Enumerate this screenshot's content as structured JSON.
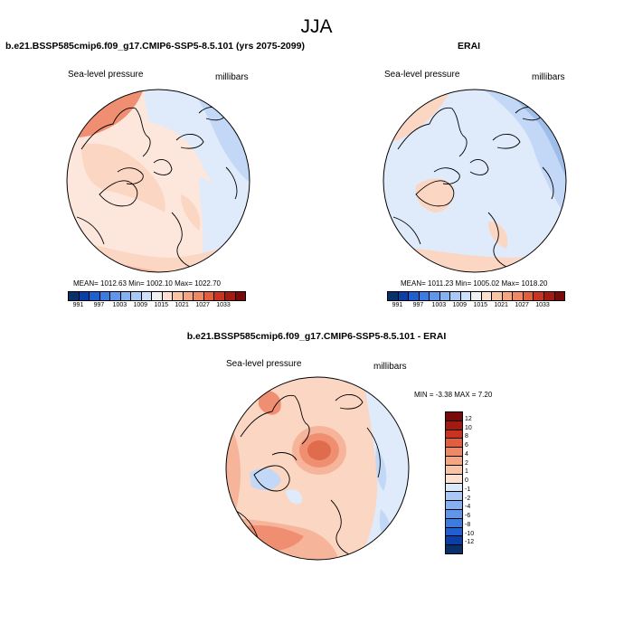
{
  "figure": {
    "title": "JJA"
  },
  "panels": [
    {
      "title": "b.e21.BSSP585cmip6.f09_g17.CMIP6-SSP5-8.5.101 (yrs 2075-2099)",
      "variable": "Sea-level pressure",
      "units": "millibars",
      "stats": "MEAN= 1012.63   Min= 1002.10   Max= 1022.70"
    },
    {
      "title": "ERAI",
      "variable": "Sea-level pressure",
      "units": "millibars",
      "stats": "MEAN= 1011.23   Min= 1005.02   Max= 1018.20"
    },
    {
      "title": "b.e21.BSSP585cmip6.f09_g17.CMIP6-SSP5-8.5.101 - ERAI",
      "variable": "Sea-level pressure",
      "units": "millibars",
      "stats": "MIN =  -3.38 MAX =   7.20"
    }
  ],
  "abs_colorbar": {
    "tick_labels": [
      "991",
      "997",
      "1003",
      "1009",
      "1015",
      "1021",
      "1027",
      "1033"
    ],
    "colors": [
      "#08306b",
      "#0b3fa8",
      "#1f5fd0",
      "#3c7be0",
      "#5f95ea",
      "#86b1f0",
      "#aac8f5",
      "#cfe0fa",
      "#f1f1f1",
      "#fde0cf",
      "#f9c3a6",
      "#f4a582",
      "#ee8865",
      "#e25f3e",
      "#c93320",
      "#a31a10",
      "#7a0909"
    ]
  },
  "diff_colorbar": {
    "tick_labels": [
      "12",
      "10",
      "8",
      "6",
      "4",
      "2",
      "1",
      "0",
      "-1",
      "-2",
      "-4",
      "-6",
      "-8",
      "-10",
      "-12"
    ],
    "colors": [
      "#7a0909",
      "#a31a10",
      "#c93320",
      "#e25f3e",
      "#ee8865",
      "#f4a582",
      "#f9c3a6",
      "#fde0cf",
      "#dbe8fb",
      "#aac8f5",
      "#86b1f0",
      "#5f95ea",
      "#3c7be0",
      "#1f5fd0",
      "#0b3fa8",
      "#08306b"
    ]
  },
  "map_palette": {
    "p_deep_red": "#e06c4e",
    "p_red": "#f08e72",
    "p_mid": "#f6b59b",
    "p_light": "#fbd6c3",
    "p_pale": "#fde7dc",
    "n_pale": "#dfeafb",
    "n_light": "#c3d8f6",
    "n_mid": "#9ebde9",
    "n_deep": "#5f8fdc",
    "n_deeper": "#3d6fcf"
  }
}
